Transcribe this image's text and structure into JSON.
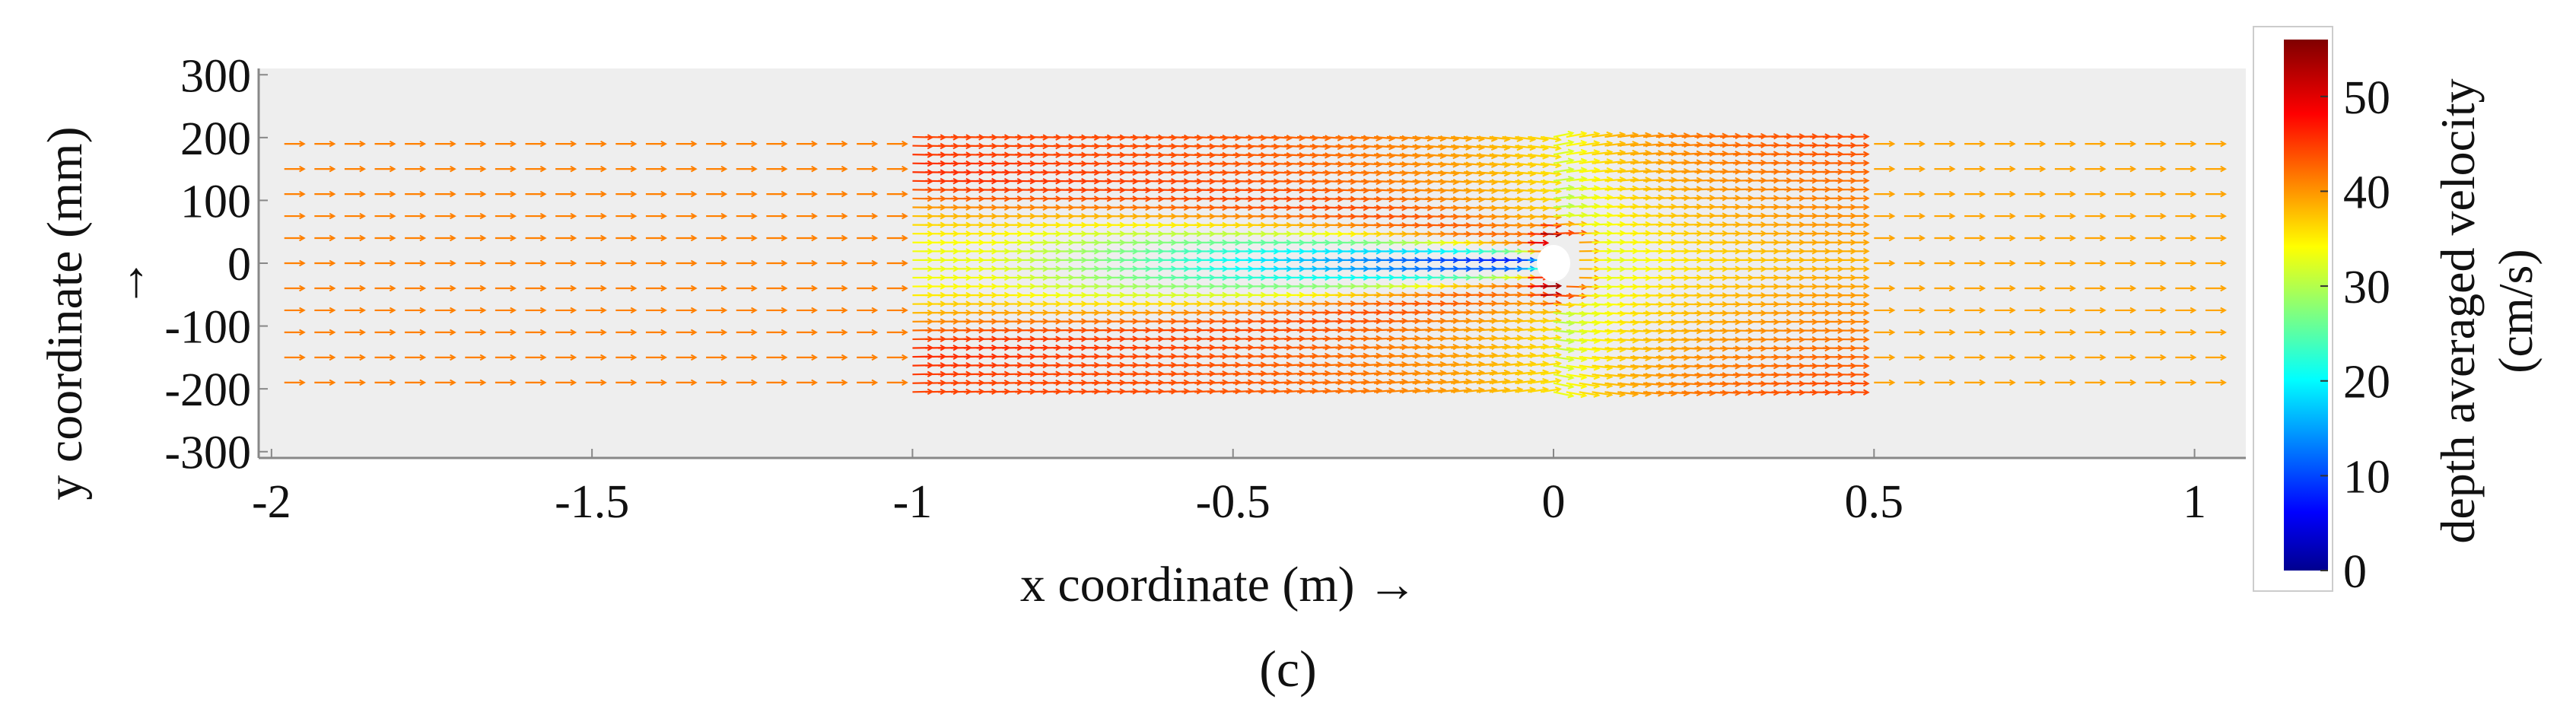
{
  "chart_data": {
    "type": "vector-field",
    "xlabel": "x coordinate  (m) →",
    "ylabel": "y coordinate  (mm)",
    "ylabel_arrow": "→",
    "xlim": [
      -2.02,
      1.08
    ],
    "ylim": [
      -310,
      310
    ],
    "x_ticks": [
      -2,
      -1.5,
      -1,
      -0.5,
      0,
      0.5,
      1
    ],
    "x_tick_labels": [
      "-2",
      "-1.5",
      "-1",
      "-0.5",
      "0",
      "0.5",
      "1"
    ],
    "y_ticks": [
      300,
      200,
      100,
      0,
      -100,
      -200,
      -300
    ],
    "y_tick_labels": [
      "300",
      "200",
      "100",
      "0",
      "-100",
      "-200",
      "-300"
    ],
    "colorbar": {
      "label_line1": "depth averaged  velocity",
      "label_line2": "(cm/s)",
      "range": [
        0,
        56
      ],
      "ticks": [
        0,
        10,
        20,
        30,
        40,
        50
      ],
      "tick_labels": [
        "0",
        "10",
        "20",
        "30",
        "40",
        "50"
      ],
      "colormap": "jet"
    },
    "background_color": "#eeeeee",
    "obstacle": {
      "x": 0.0,
      "y": 0,
      "color": "#ffffff"
    },
    "series": [
      {
        "region": "upstream-coarse",
        "x_range": [
          -1.98,
          -1.0
        ],
        "y_rows": [
          190,
          150,
          110,
          75,
          40,
          0,
          -40,
          -75,
          -110,
          -150,
          -190
        ],
        "velocity_cm_s": 42
      },
      {
        "region": "measurement-window",
        "x_range": [
          -1.0,
          0.48
        ],
        "y_range": [
          -205,
          205
        ],
        "velocity_range_cm_s": [
          2,
          52
        ]
      },
      {
        "region": "downstream-coarse",
        "x_range": [
          0.5,
          1.06
        ],
        "y_rows": [
          190,
          150,
          110,
          75,
          40,
          0,
          -40,
          -75,
          -110,
          -150,
          -190
        ],
        "velocity_cm_s": 40
      }
    ]
  },
  "caption": "(c)"
}
